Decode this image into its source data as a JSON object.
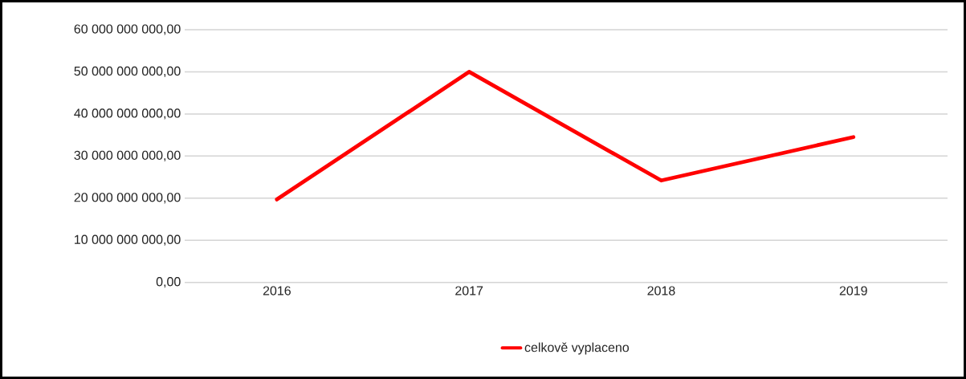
{
  "chart_data": {
    "type": "line",
    "categories": [
      "2016",
      "2017",
      "2018",
      "2019"
    ],
    "series": [
      {
        "name": "celkově vyplaceno",
        "color": "#ff0000",
        "values": [
          19700000000,
          50000000000,
          24200000000,
          34500000000
        ]
      }
    ],
    "ylim": [
      0,
      60000000000
    ],
    "yticks": [
      {
        "value": 0,
        "label": "0,00"
      },
      {
        "value": 10000000000,
        "label": "10 000 000 000,00"
      },
      {
        "value": 20000000000,
        "label": "20 000 000 000,00"
      },
      {
        "value": 30000000000,
        "label": "30 000 000 000,00"
      },
      {
        "value": 40000000000,
        "label": "40 000 000 000,00"
      },
      {
        "value": 50000000000,
        "label": "50 000 000 000,00"
      },
      {
        "value": 60000000000,
        "label": "60 000 000 000,00"
      }
    ],
    "grid": "y",
    "legend": "bottom",
    "marker": "none",
    "line_style": "solid"
  }
}
